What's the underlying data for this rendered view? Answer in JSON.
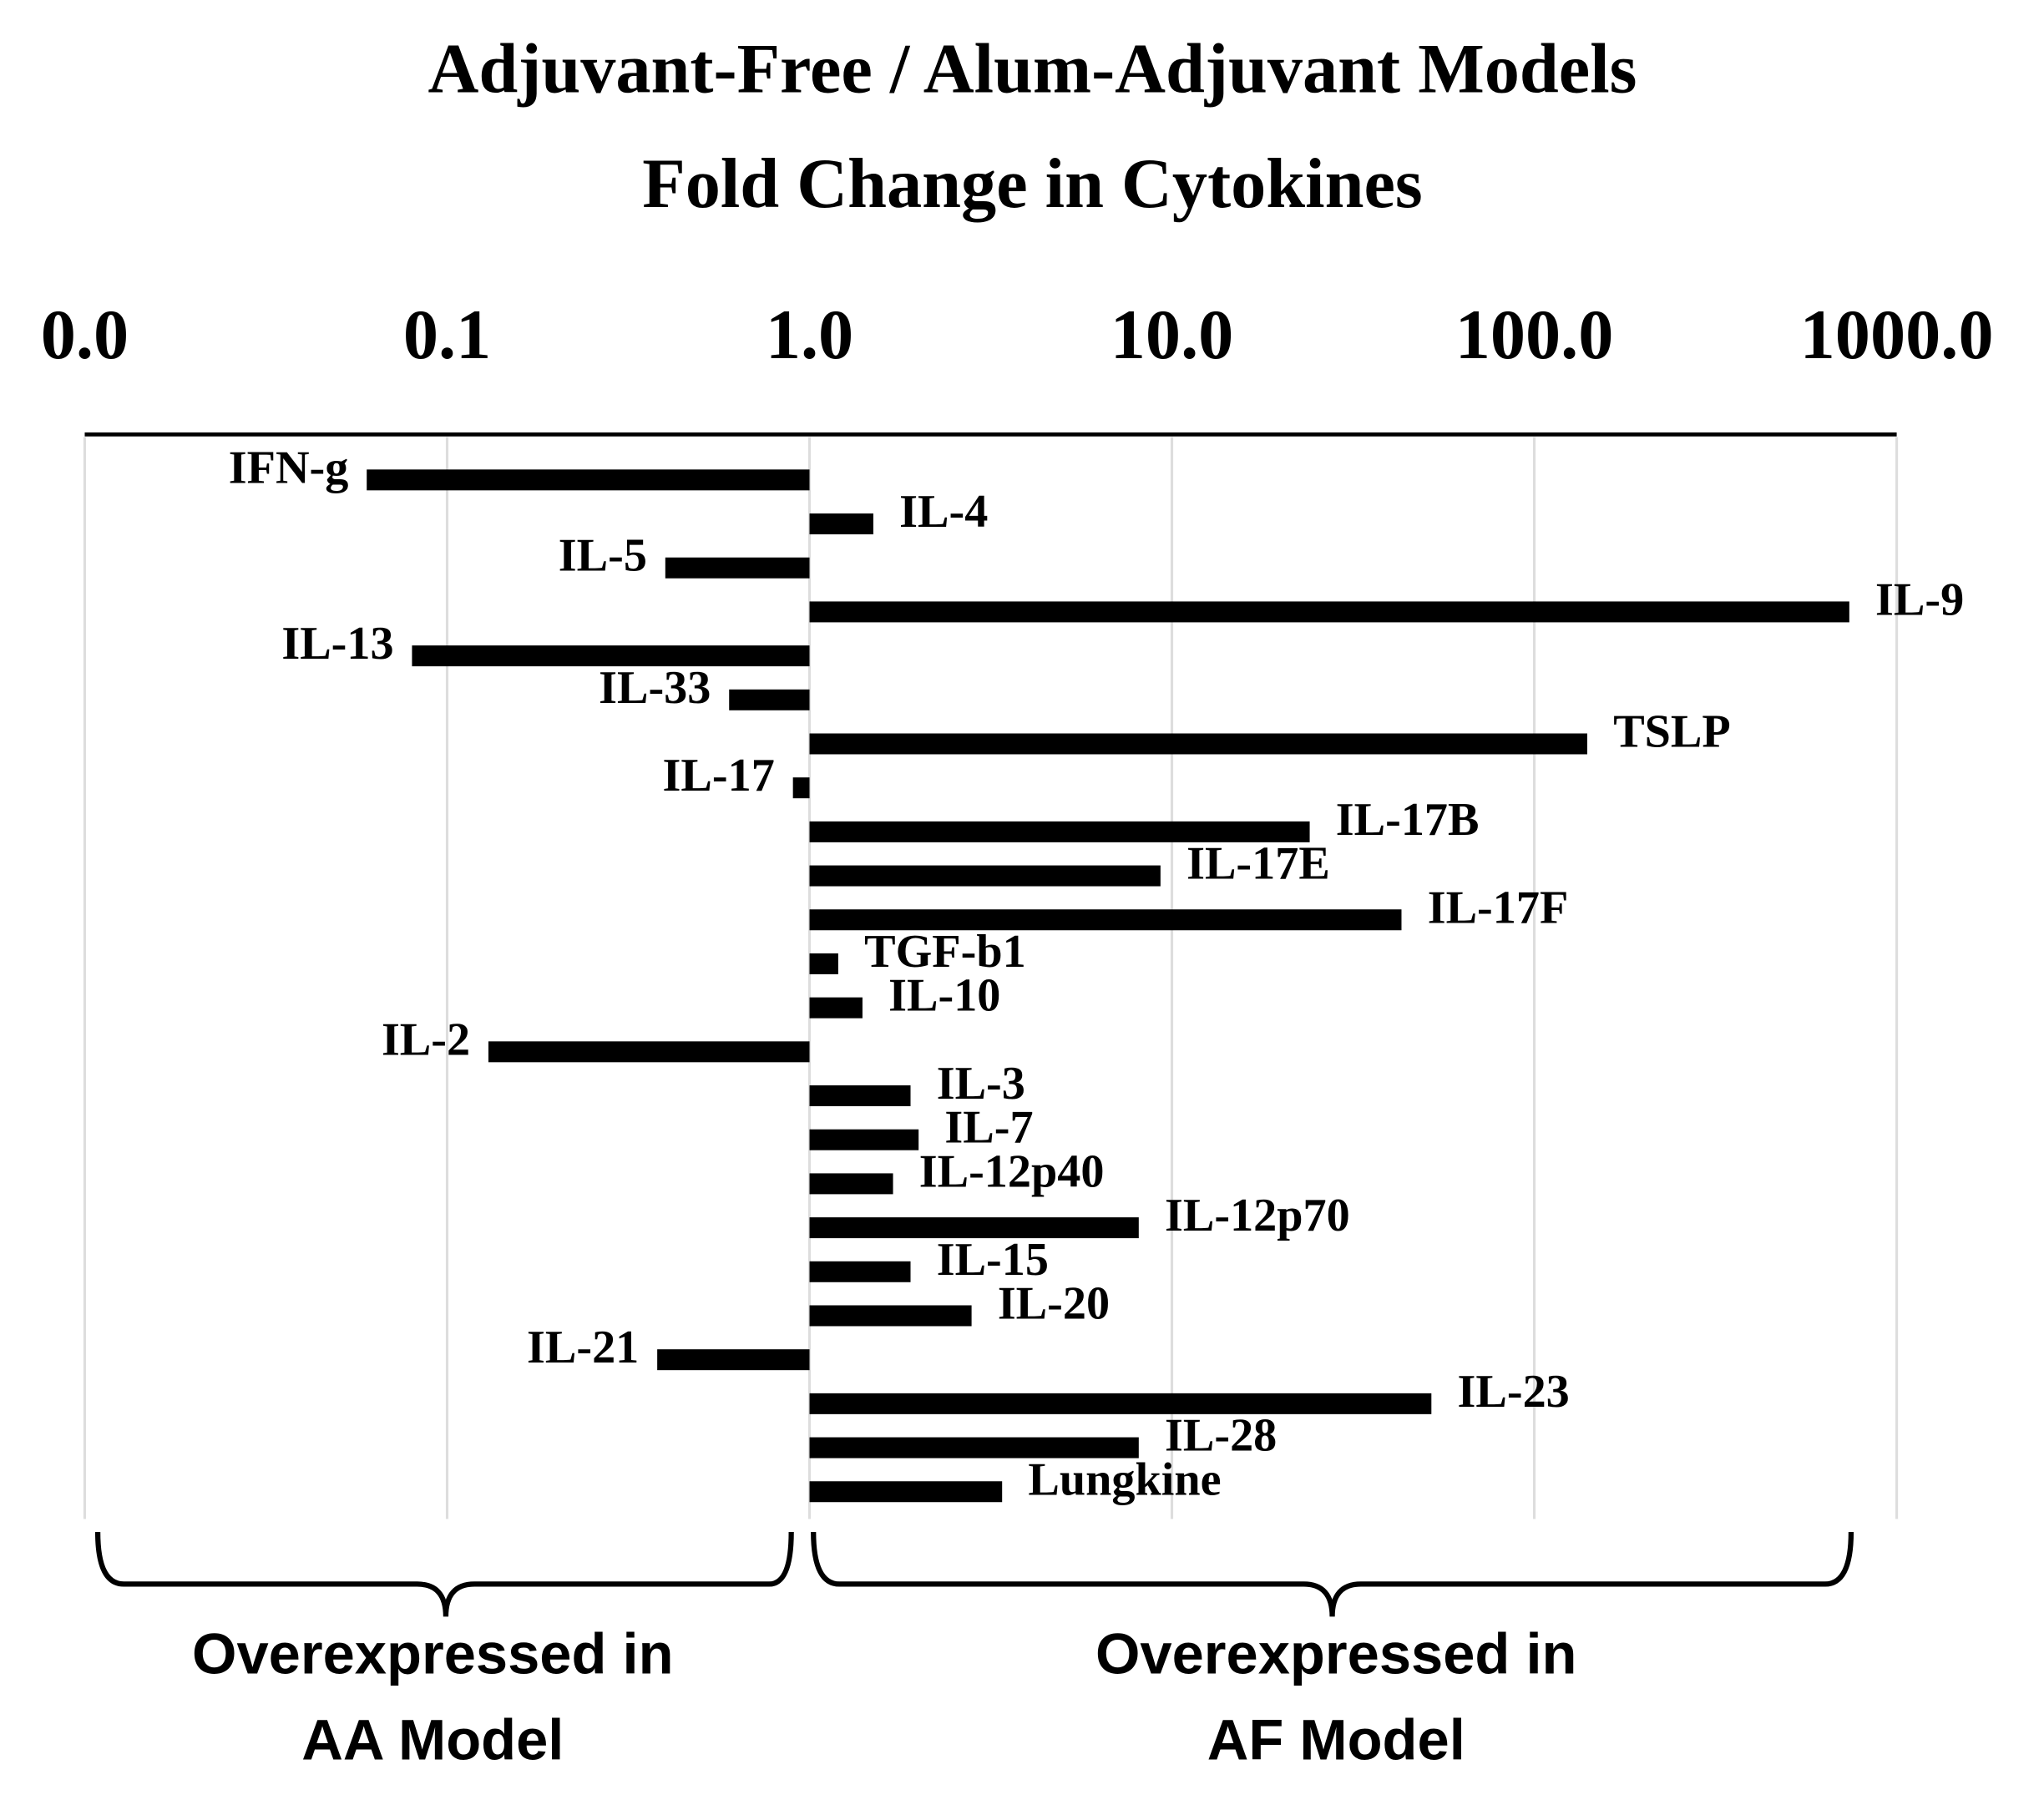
{
  "chart_data": {
    "type": "bar",
    "orientation": "horizontal",
    "title": [
      "Adjuvant-Free / Alum-Adjuvant Models",
      "Fold Change in Cytokines"
    ],
    "categories": [
      "IFN-g",
      "IL-4",
      "IL-5",
      "IL-9",
      "IL-13",
      "IL-33",
      "TSLP",
      "IL-17",
      "IL-17B",
      "IL-17E",
      "IL-17F",
      "TGF-b1",
      "IL-10",
      "IL-2",
      "IL-3",
      "IL-7",
      "IL-12p40",
      "IL-12p70",
      "IL-15",
      "IL-20",
      "IL-21",
      "IL-23",
      "IL-28",
      "Lungkine"
    ],
    "values": [
      0.06,
      1.5,
      0.4,
      740,
      0.08,
      0.6,
      140,
      0.9,
      24,
      9.3,
      43,
      1.2,
      1.4,
      0.13,
      1.9,
      2.0,
      1.7,
      8.1,
      1.9,
      2.8,
      0.38,
      52,
      8.1,
      3.4
    ],
    "color": "#000000",
    "xscale": "log",
    "xlim": [
      0.01,
      1000
    ],
    "xticks": [
      {
        "value": 0.01,
        "label": "0.0"
      },
      {
        "value": 0.1,
        "label": "0.1"
      },
      {
        "value": 1,
        "label": "1.0"
      },
      {
        "value": 10,
        "label": "10.0"
      },
      {
        "value": 100,
        "label": "100.0"
      },
      {
        "value": 1000,
        "label": "1000.0"
      }
    ],
    "grid": true,
    "annotations": [
      [
        "Overexpressed in",
        "AA Model"
      ],
      [
        "Overexpressed in",
        "AF Model"
      ]
    ]
  }
}
